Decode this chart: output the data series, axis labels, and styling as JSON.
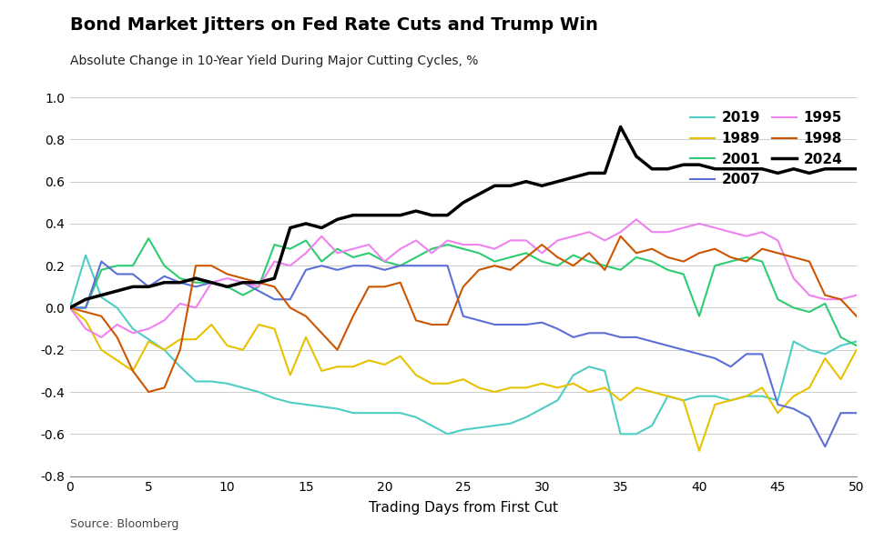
{
  "title": "Bond Market Jitters on Fed Rate Cuts and Trump Win",
  "subtitle": "Absolute Change in 10-Year Yield During Major Cutting Cycles, %",
  "xlabel": "Trading Days from First Cut",
  "source": "Source: Bloomberg",
  "xlim": [
    0,
    50
  ],
  "ylim": [
    -0.8,
    1.0
  ],
  "yticks": [
    -0.8,
    -0.6,
    -0.4,
    -0.2,
    0.0,
    0.2,
    0.4,
    0.6,
    0.8,
    1.0
  ],
  "xticks": [
    0,
    5,
    10,
    15,
    20,
    25,
    30,
    35,
    40,
    45,
    50
  ],
  "series": {
    "2019": {
      "color": "#4ECDC4",
      "linewidth": 1.5,
      "data": [
        0.0,
        0.25,
        0.05,
        0.0,
        -0.1,
        -0.15,
        -0.2,
        -0.28,
        -0.35,
        -0.35,
        -0.36,
        -0.38,
        -0.4,
        -0.43,
        -0.45,
        -0.46,
        -0.47,
        -0.48,
        -0.5,
        -0.5,
        -0.5,
        -0.5,
        -0.52,
        -0.56,
        -0.6,
        -0.58,
        -0.57,
        -0.56,
        -0.55,
        -0.52,
        -0.48,
        -0.44,
        -0.32,
        -0.28,
        -0.3,
        -0.6,
        -0.6,
        -0.56,
        -0.42,
        -0.44,
        -0.42,
        -0.42,
        -0.44,
        -0.42,
        -0.42,
        -0.44,
        -0.16,
        -0.2,
        -0.22,
        -0.18,
        -0.16
      ]
    },
    "1989": {
      "color": "#E8C200",
      "linewidth": 1.5,
      "data": [
        0.0,
        -0.06,
        -0.2,
        -0.25,
        -0.3,
        -0.16,
        -0.2,
        -0.15,
        -0.15,
        -0.08,
        -0.18,
        -0.2,
        -0.08,
        -0.1,
        -0.32,
        -0.14,
        -0.3,
        -0.28,
        -0.28,
        -0.25,
        -0.27,
        -0.23,
        -0.32,
        -0.36,
        -0.36,
        -0.34,
        -0.38,
        -0.4,
        -0.38,
        -0.38,
        -0.36,
        -0.38,
        -0.36,
        -0.4,
        -0.38,
        -0.44,
        -0.38,
        -0.4,
        -0.42,
        -0.44,
        -0.68,
        -0.46,
        -0.44,
        -0.42,
        -0.38,
        -0.5,
        -0.42,
        -0.38,
        -0.24,
        -0.34,
        -0.2
      ]
    },
    "2001": {
      "color": "#2ECC71",
      "linewidth": 1.5,
      "data": [
        0.0,
        0.0,
        0.18,
        0.2,
        0.2,
        0.33,
        0.2,
        0.14,
        0.12,
        0.12,
        0.1,
        0.06,
        0.1,
        0.3,
        0.28,
        0.32,
        0.22,
        0.28,
        0.24,
        0.26,
        0.22,
        0.2,
        0.24,
        0.28,
        0.3,
        0.28,
        0.26,
        0.22,
        0.24,
        0.26,
        0.22,
        0.2,
        0.25,
        0.22,
        0.2,
        0.18,
        0.24,
        0.22,
        0.18,
        0.16,
        -0.04,
        0.2,
        0.22,
        0.24,
        0.22,
        0.04,
        0.0,
        -0.02,
        0.02,
        -0.14,
        -0.18
      ]
    },
    "2007": {
      "color": "#5B6FD4",
      "linewidth": 1.5,
      "data": [
        0.0,
        0.0,
        0.22,
        0.16,
        0.16,
        0.1,
        0.15,
        0.12,
        0.1,
        0.12,
        0.1,
        0.12,
        0.08,
        0.04,
        0.04,
        0.18,
        0.2,
        0.18,
        0.2,
        0.2,
        0.18,
        0.2,
        0.2,
        0.2,
        0.2,
        -0.04,
        -0.06,
        -0.08,
        -0.08,
        -0.08,
        -0.07,
        -0.1,
        -0.14,
        -0.12,
        -0.12,
        -0.14,
        -0.14,
        -0.16,
        -0.18,
        -0.2,
        -0.22,
        -0.24,
        -0.28,
        -0.22,
        -0.22,
        -0.46,
        -0.48,
        -0.52,
        -0.66,
        -0.5,
        -0.5
      ]
    },
    "1995": {
      "color": "#EE82EE",
      "linewidth": 1.5,
      "data": [
        0.0,
        -0.1,
        -0.14,
        -0.08,
        -0.12,
        -0.1,
        -0.06,
        0.02,
        0.0,
        0.12,
        0.14,
        0.12,
        0.1,
        0.22,
        0.2,
        0.26,
        0.34,
        0.26,
        0.28,
        0.3,
        0.22,
        0.28,
        0.32,
        0.26,
        0.32,
        0.3,
        0.3,
        0.28,
        0.32,
        0.32,
        0.26,
        0.32,
        0.34,
        0.36,
        0.32,
        0.36,
        0.42,
        0.36,
        0.36,
        0.38,
        0.4,
        0.38,
        0.36,
        0.34,
        0.36,
        0.32,
        0.14,
        0.06,
        0.04,
        0.04,
        0.06
      ]
    },
    "1998": {
      "color": "#CC5500",
      "linewidth": 1.5,
      "data": [
        0.0,
        -0.02,
        -0.04,
        -0.14,
        -0.3,
        -0.4,
        -0.38,
        -0.2,
        0.2,
        0.2,
        0.16,
        0.14,
        0.12,
        0.1,
        0.0,
        -0.04,
        -0.12,
        -0.2,
        -0.04,
        0.1,
        0.1,
        0.12,
        -0.06,
        -0.08,
        -0.08,
        0.1,
        0.18,
        0.2,
        0.18,
        0.24,
        0.3,
        0.24,
        0.2,
        0.26,
        0.18,
        0.34,
        0.26,
        0.28,
        0.24,
        0.22,
        0.26,
        0.28,
        0.24,
        0.22,
        0.28,
        0.26,
        0.24,
        0.22,
        0.06,
        0.04,
        -0.04
      ]
    },
    "2024": {
      "color": "#000000",
      "linewidth": 2.5,
      "data": [
        0.0,
        0.04,
        0.06,
        0.08,
        0.1,
        0.1,
        0.12,
        0.12,
        0.14,
        0.12,
        0.1,
        0.12,
        0.12,
        0.14,
        0.38,
        0.4,
        0.38,
        0.42,
        0.44,
        0.44,
        0.44,
        0.44,
        0.46,
        0.44,
        0.44,
        0.5,
        0.54,
        0.58,
        0.58,
        0.6,
        0.58,
        0.6,
        0.62,
        0.64,
        0.64,
        0.86,
        0.72,
        0.66,
        0.66,
        0.68,
        0.68,
        0.66,
        0.66,
        0.66,
        0.66,
        0.64,
        0.66,
        0.64,
        0.66,
        0.66,
        0.66
      ]
    }
  },
  "legend_order": [
    "2019",
    "1989",
    "2001",
    "2007",
    "1995",
    "1998",
    "2024"
  ]
}
